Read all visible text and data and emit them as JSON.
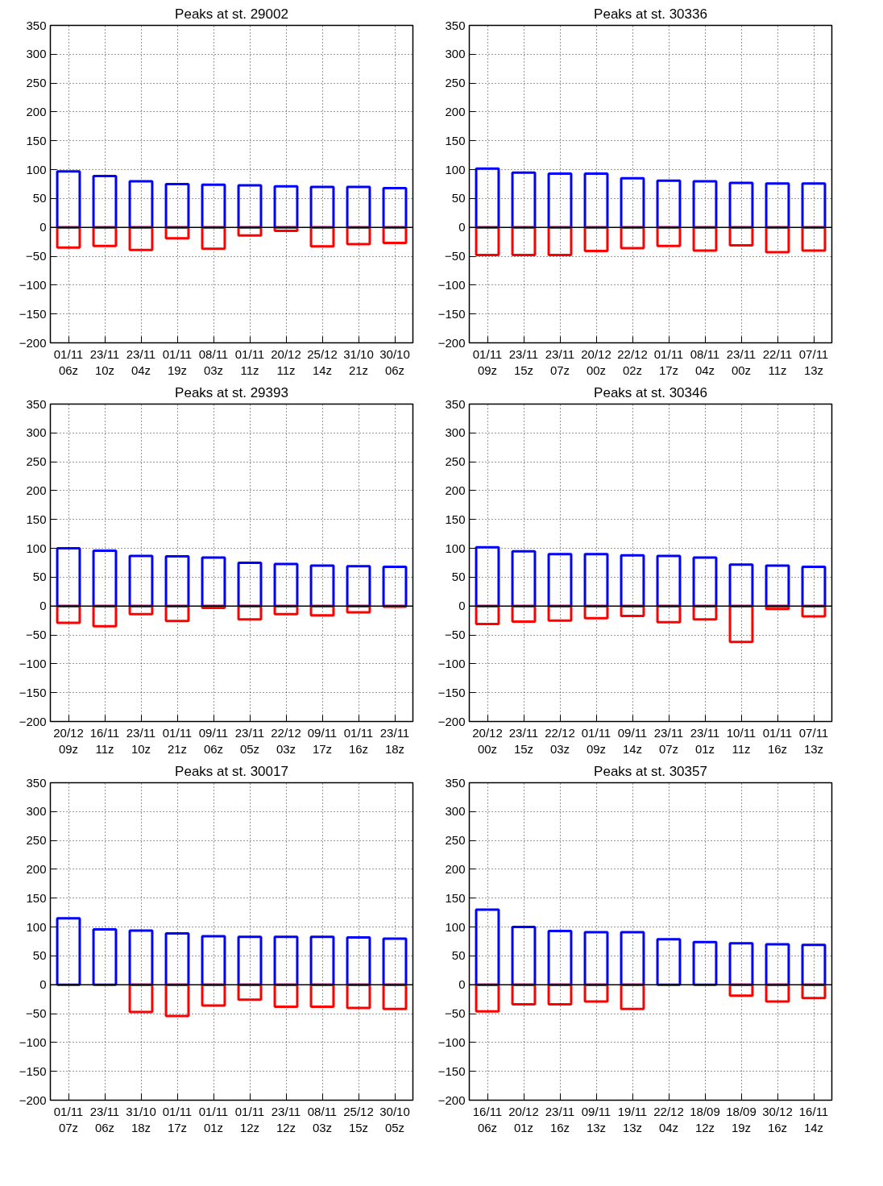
{
  "chart_data": [
    {
      "type": "bar",
      "title": "Peaks at st. 29002",
      "grid": true,
      "categories": [
        "01/11\n06z",
        "23/11\n10z",
        "23/11\n04z",
        "01/11\n19z",
        "08/11\n03z",
        "01/11\n11z",
        "20/12\n11z",
        "25/12\n14z",
        "31/10\n21z",
        "30/10\n06z"
      ],
      "series": [
        {
          "color": "#0000ff",
          "values": [
            97,
            89,
            80,
            75,
            74,
            73,
            71,
            70,
            70,
            68
          ]
        },
        {
          "color": "#ff0000",
          "values": [
            -35,
            -32,
            -39,
            -19,
            -37,
            -14,
            -6,
            -33,
            -29,
            -27
          ]
        }
      ],
      "ylim": [
        -200,
        350
      ],
      "yticks": [
        {
          "value": -200,
          "label": "−200"
        },
        {
          "value": -150,
          "label": "−150"
        },
        {
          "value": -100,
          "label": "−100"
        },
        {
          "value": -50,
          "label": "−50"
        },
        0,
        50,
        100,
        150,
        200,
        250,
        300,
        350
      ]
    },
    {
      "type": "bar",
      "title": "Peaks at st. 30336",
      "grid": true,
      "categories": [
        "01/11\n09z",
        "23/11\n15z",
        "23/11\n07z",
        "20/12\n00z",
        "22/12\n02z",
        "01/11\n17z",
        "08/11\n04z",
        "23/11\n00z",
        "22/11\n11z",
        "07/11\n13z"
      ],
      "series": [
        {
          "color": "#0000ff",
          "values": [
            102,
            95,
            93,
            93,
            85,
            81,
            80,
            77,
            76,
            76
          ]
        },
        {
          "color": "#ff0000",
          "values": [
            -48,
            -48,
            -48,
            -41,
            -36,
            -32,
            -40,
            -31,
            -43,
            -40
          ]
        }
      ],
      "ylim": [
        -200,
        350
      ],
      "yticks": [
        {
          "value": -200,
          "label": "−200"
        },
        {
          "value": -150,
          "label": "−150"
        },
        {
          "value": -100,
          "label": "−100"
        },
        {
          "value": -50,
          "label": "−50"
        },
        0,
        50,
        100,
        150,
        200,
        250,
        300,
        350
      ]
    },
    {
      "type": "bar",
      "title": "Peaks at st. 29393",
      "grid": true,
      "categories": [
        "20/12\n09z",
        "16/11\n11z",
        "23/11\n10z",
        "01/11\n21z",
        "09/11\n06z",
        "23/11\n05z",
        "22/12\n03z",
        "09/11\n17z",
        "01/11\n16z",
        "23/11\n18z"
      ],
      "series": [
        {
          "color": "#0000ff",
          "values": [
            100,
            96,
            87,
            86,
            84,
            75,
            73,
            70,
            69,
            68
          ]
        },
        {
          "color": "#ff0000",
          "values": [
            -29,
            -35,
            -14,
            -26,
            -3,
            -23,
            -14,
            -16,
            -11,
            -1
          ]
        }
      ],
      "ylim": [
        -200,
        350
      ],
      "yticks": [
        {
          "value": -200,
          "label": "−200"
        },
        {
          "value": -150,
          "label": "−150"
        },
        {
          "value": -100,
          "label": "−100"
        },
        {
          "value": -50,
          "label": "−50"
        },
        0,
        50,
        100,
        150,
        200,
        250,
        300,
        350
      ]
    },
    {
      "type": "bar",
      "title": "Peaks at st. 30346",
      "grid": true,
      "categories": [
        "20/12\n00z",
        "23/11\n15z",
        "22/12\n03z",
        "01/11\n09z",
        "09/11\n14z",
        "23/11\n07z",
        "23/11\n01z",
        "10/11\n11z",
        "01/11\n16z",
        "07/11\n13z"
      ],
      "series": [
        {
          "color": "#0000ff",
          "values": [
            102,
            95,
            90,
            90,
            88,
            87,
            84,
            72,
            70,
            68
          ]
        },
        {
          "color": "#ff0000",
          "values": [
            -31,
            -27,
            -25,
            -21,
            -17,
            -28,
            -23,
            -62,
            -5,
            -18
          ]
        }
      ],
      "ylim": [
        -200,
        350
      ],
      "yticks": [
        {
          "value": -200,
          "label": "−200"
        },
        {
          "value": -150,
          "label": "−150"
        },
        {
          "value": -100,
          "label": "−100"
        },
        {
          "value": -50,
          "label": "−50"
        },
        0,
        50,
        100,
        150,
        200,
        250,
        300,
        350
      ]
    },
    {
      "type": "bar",
      "title": "Peaks at st. 30017",
      "grid": true,
      "categories": [
        "01/11\n07z",
        "23/11\n06z",
        "31/10\n18z",
        "01/11\n17z",
        "01/11\n01z",
        "01/11\n12z",
        "23/11\n12z",
        "08/11\n03z",
        "25/12\n15z",
        "30/10\n05z"
      ],
      "series": [
        {
          "color": "#0000ff",
          "values": [
            115,
            96,
            94,
            89,
            84,
            83,
            83,
            83,
            82,
            80
          ]
        },
        {
          "color": "#ff0000",
          "values": [
            null,
            null,
            -47,
            -54,
            -36,
            -26,
            -38,
            -38,
            -40,
            -42
          ]
        }
      ],
      "ylim": [
        -200,
        350
      ],
      "yticks": [
        {
          "value": -200,
          "label": "−200"
        },
        {
          "value": -150,
          "label": "−150"
        },
        {
          "value": -100,
          "label": "−100"
        },
        {
          "value": -50,
          "label": "−50"
        },
        0,
        50,
        100,
        150,
        200,
        250,
        300,
        350
      ]
    },
    {
      "type": "bar",
      "title": "Peaks at st. 30357",
      "grid": true,
      "categories": [
        "16/11\n06z",
        "20/12\n01z",
        "23/11\n16z",
        "09/11\n13z",
        "19/11\n13z",
        "22/12\n04z",
        "18/09\n12z",
        "18/09\n19z",
        "30/12\n16z",
        "16/11\n14z"
      ],
      "series": [
        {
          "color": "#0000ff",
          "values": [
            130,
            100,
            93,
            91,
            91,
            79,
            74,
            72,
            70,
            69
          ]
        },
        {
          "color": "#ff0000",
          "values": [
            -46,
            -34,
            -34,
            -29,
            -42,
            null,
            null,
            -19,
            -29,
            -23
          ]
        }
      ],
      "ylim": [
        -200,
        350
      ],
      "yticks": [
        {
          "value": -200,
          "label": "−200"
        },
        {
          "value": -150,
          "label": "−150"
        },
        {
          "value": -100,
          "label": "−100"
        },
        {
          "value": -50,
          "label": "−50"
        },
        0,
        50,
        100,
        150,
        200,
        250,
        300,
        350
      ]
    }
  ]
}
